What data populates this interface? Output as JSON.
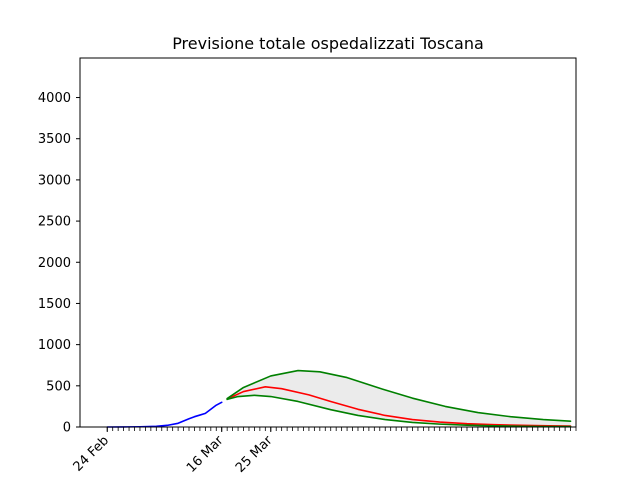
{
  "chart_data": {
    "type": "line",
    "title": "Previsione totale ospedalizzati Toscana",
    "xlabel": "",
    "ylabel": "",
    "x_axis": {
      "unit": "day",
      "year": 2020,
      "range": [
        "2020-02-19",
        "2020-05-20"
      ],
      "tick_labels": [
        {
          "date": "2020-02-24",
          "label": "24 Feb"
        },
        {
          "date": "2020-03-16",
          "label": "16 Mar"
        },
        {
          "date": "2020-03-25",
          "label": "25 Mar"
        }
      ],
      "minor_ticks": {
        "start": "2020-02-24",
        "end": "2020-05-20",
        "step_days": 1
      }
    },
    "ylim": [
      0,
      4480
    ],
    "yticks": [
      0,
      500,
      1000,
      1500,
      2000,
      2500,
      3000,
      3500,
      4000
    ],
    "grid": false,
    "legend": "none",
    "series": [
      {
        "role": "observed",
        "color": "#0000ff",
        "points": [
          [
            "2020-02-24",
            0
          ],
          [
            "2020-02-27",
            1
          ],
          [
            "2020-03-01",
            3
          ],
          [
            "2020-03-04",
            8
          ],
          [
            "2020-03-06",
            20
          ],
          [
            "2020-03-08",
            45
          ],
          [
            "2020-03-10",
            100
          ],
          [
            "2020-03-11",
            125
          ],
          [
            "2020-03-12",
            145
          ],
          [
            "2020-03-13",
            165
          ],
          [
            "2020-03-14",
            215
          ],
          [
            "2020-03-15",
            265
          ],
          [
            "2020-03-16",
            300
          ]
        ]
      },
      {
        "role": "forecast_central",
        "color": "#ff0000",
        "points": [
          [
            "2020-03-17",
            340
          ],
          [
            "2020-03-20",
            430
          ],
          [
            "2020-03-24",
            488
          ],
          [
            "2020-03-27",
            465
          ],
          [
            "2020-04-01",
            390
          ],
          [
            "2020-04-05",
            310
          ],
          [
            "2020-04-10",
            215
          ],
          [
            "2020-04-15",
            140
          ],
          [
            "2020-04-20",
            90
          ],
          [
            "2020-04-25",
            60
          ],
          [
            "2020-04-30",
            40
          ],
          [
            "2020-05-05",
            28
          ],
          [
            "2020-05-10",
            20
          ],
          [
            "2020-05-15",
            15
          ],
          [
            "2020-05-19",
            12
          ]
        ]
      },
      {
        "role": "forecast_upper",
        "color": "#008000",
        "points": [
          [
            "2020-03-17",
            345
          ],
          [
            "2020-03-20",
            480
          ],
          [
            "2020-03-25",
            620
          ],
          [
            "2020-03-30",
            685
          ],
          [
            "2020-04-03",
            670
          ],
          [
            "2020-04-08",
            600
          ],
          [
            "2020-04-14",
            470
          ],
          [
            "2020-04-20",
            350
          ],
          [
            "2020-04-26",
            250
          ],
          [
            "2020-05-02",
            175
          ],
          [
            "2020-05-08",
            125
          ],
          [
            "2020-05-14",
            90
          ],
          [
            "2020-05-19",
            70
          ]
        ]
      },
      {
        "role": "forecast_lower",
        "color": "#008000",
        "points": [
          [
            "2020-03-17",
            335
          ],
          [
            "2020-03-19",
            370
          ],
          [
            "2020-03-22",
            385
          ],
          [
            "2020-03-25",
            370
          ],
          [
            "2020-03-30",
            310
          ],
          [
            "2020-04-05",
            210
          ],
          [
            "2020-04-10",
            140
          ],
          [
            "2020-04-15",
            90
          ],
          [
            "2020-04-20",
            55
          ],
          [
            "2020-04-25",
            35
          ],
          [
            "2020-04-30",
            22
          ],
          [
            "2020-05-05",
            14
          ],
          [
            "2020-05-10",
            9
          ],
          [
            "2020-05-15",
            6
          ],
          [
            "2020-05-19",
            5
          ]
        ]
      }
    ],
    "band": {
      "between": [
        "forecast_lower",
        "forecast_upper"
      ],
      "color": "#ebebeb"
    }
  }
}
